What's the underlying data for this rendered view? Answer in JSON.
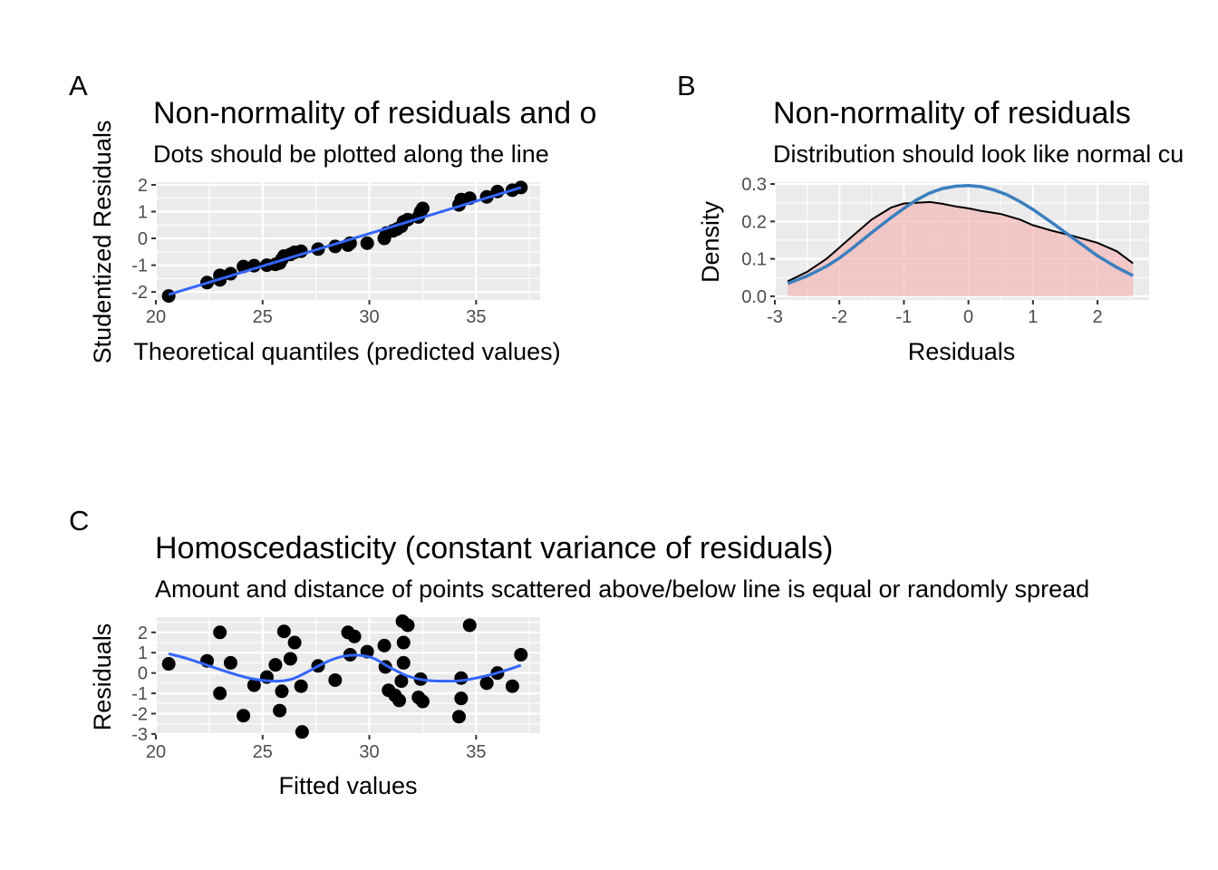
{
  "panels": [
    {
      "tag": "A",
      "title": "Non-normality of residuals and o",
      "subtitle": "Dots should be plotted along the line"
    },
    {
      "tag": "B",
      "title": "Non-normality of residuals",
      "subtitle": "Distribution should look like normal cu"
    },
    {
      "tag": "C",
      "title": "Homoscedasticity (constant variance of residuals)",
      "subtitle": "Amount and distance of points scattered above/below line is equal or randomly spread"
    }
  ],
  "colors": {
    "panel_background": "#ebebeb",
    "grid": "#ffffff",
    "points": "#000000",
    "fit_line": "#3366ff",
    "normal_curve": "#3b7fbf",
    "density_fill": "#f4b6b6",
    "density_line": "#000000"
  },
  "chart_data": [
    {
      "type": "scatter",
      "title": "Non-normality of residuals and o",
      "subtitle": "Dots should be plotted along the line",
      "xlabel": "Theoretical quantiles (predicted values)",
      "ylabel": "Studentized Residuals",
      "xlim": [
        20,
        38
      ],
      "ylim": [
        -2.3,
        2.1
      ],
      "xticks": [
        20,
        25,
        30,
        35
      ],
      "yticks": [
        -2,
        -1,
        0,
        1,
        2
      ],
      "grid": true,
      "points": [
        {
          "x": 20.6,
          "y": -2.15
        },
        {
          "x": 22.4,
          "y": -1.65
        },
        {
          "x": 23.0,
          "y": -1.55
        },
        {
          "x": 23.0,
          "y": -1.38
        },
        {
          "x": 23.5,
          "y": -1.32
        },
        {
          "x": 24.1,
          "y": -1.05
        },
        {
          "x": 24.6,
          "y": -1.02
        },
        {
          "x": 25.2,
          "y": -1.0
        },
        {
          "x": 25.6,
          "y": -0.97
        },
        {
          "x": 25.8,
          "y": -0.92
        },
        {
          "x": 25.9,
          "y": -0.78
        },
        {
          "x": 26.0,
          "y": -0.66
        },
        {
          "x": 26.3,
          "y": -0.6
        },
        {
          "x": 26.5,
          "y": -0.52
        },
        {
          "x": 26.8,
          "y": -0.48
        },
        {
          "x": 27.6,
          "y": -0.4
        },
        {
          "x": 28.4,
          "y": -0.3
        },
        {
          "x": 29.0,
          "y": -0.25
        },
        {
          "x": 29.1,
          "y": -0.18
        },
        {
          "x": 29.9,
          "y": -0.18
        },
        {
          "x": 30.7,
          "y": 0.0
        },
        {
          "x": 30.8,
          "y": 0.2
        },
        {
          "x": 31.1,
          "y": 0.28
        },
        {
          "x": 31.3,
          "y": 0.35
        },
        {
          "x": 31.5,
          "y": 0.45
        },
        {
          "x": 31.6,
          "y": 0.62
        },
        {
          "x": 31.8,
          "y": 0.7
        },
        {
          "x": 32.3,
          "y": 0.8
        },
        {
          "x": 32.4,
          "y": 1.0
        },
        {
          "x": 32.5,
          "y": 1.12
        },
        {
          "x": 34.2,
          "y": 1.25
        },
        {
          "x": 34.3,
          "y": 1.45
        },
        {
          "x": 34.7,
          "y": 1.5
        },
        {
          "x": 35.5,
          "y": 1.55
        },
        {
          "x": 36.0,
          "y": 1.75
        },
        {
          "x": 36.7,
          "y": 1.8
        },
        {
          "x": 37.1,
          "y": 1.9
        }
      ],
      "line": {
        "x": [
          20.6,
          37.1
        ],
        "y": [
          -2.1,
          1.9
        ]
      }
    },
    {
      "type": "area",
      "title": "Non-normality of residuals",
      "subtitle": "Distribution should look like normal cu",
      "xlabel": "Residuals",
      "ylabel": "Density",
      "xlim": [
        -3.0,
        2.8
      ],
      "ylim": [
        -0.01,
        0.305
      ],
      "xticks": [
        -3,
        -2,
        -1,
        0,
        1,
        2
      ],
      "yticks": [
        0.0,
        0.1,
        0.2,
        0.3
      ],
      "ytick_labels": [
        "0.0",
        "0.1",
        "0.2",
        "0.3"
      ],
      "grid": true,
      "series": [
        {
          "type": "area",
          "x": [
            -2.8,
            -2.5,
            -2.2,
            -2.0,
            -1.8,
            -1.5,
            -1.2,
            -1.0,
            -0.8,
            -0.6,
            -0.4,
            -0.2,
            0.0,
            0.2,
            0.5,
            0.8,
            1.0,
            1.3,
            1.6,
            2.0,
            2.3,
            2.55
          ],
          "y": [
            0.04,
            0.065,
            0.1,
            0.13,
            0.16,
            0.205,
            0.237,
            0.248,
            0.25,
            0.252,
            0.247,
            0.24,
            0.235,
            0.228,
            0.22,
            0.205,
            0.19,
            0.175,
            0.162,
            0.143,
            0.12,
            0.088
          ]
        },
        {
          "type": "line",
          "x": [
            -2.8,
            -2.5,
            -2.2,
            -2.0,
            -1.8,
            -1.5,
            -1.2,
            -1.0,
            -0.8,
            -0.6,
            -0.4,
            -0.2,
            0.0,
            0.2,
            0.4,
            0.6,
            0.8,
            1.0,
            1.3,
            1.6,
            2.0,
            2.3,
            2.55
          ],
          "y": [
            0.034,
            0.054,
            0.08,
            0.102,
            0.128,
            0.17,
            0.21,
            0.235,
            0.258,
            0.276,
            0.288,
            0.294,
            0.296,
            0.293,
            0.284,
            0.271,
            0.253,
            0.232,
            0.196,
            0.158,
            0.108,
            0.077,
            0.055
          ]
        }
      ]
    },
    {
      "type": "scatter",
      "title": "Homoscedasticity (constant variance of residuals)",
      "subtitle": "Amount and distance of points scattered above/below line is equal or randomly spread",
      "xlabel": "Fitted values",
      "ylabel": "Residuals",
      "xlim": [
        20,
        38
      ],
      "ylim": [
        -3.05,
        2.75
      ],
      "xticks": [
        20,
        25,
        30,
        35
      ],
      "yticks": [
        -3,
        -2,
        -1,
        0,
        1,
        2
      ],
      "grid": true,
      "points": [
        {
          "x": 20.6,
          "y": 0.45
        },
        {
          "x": 22.4,
          "y": 0.6
        },
        {
          "x": 23.0,
          "y": 2.0
        },
        {
          "x": 23.0,
          "y": -1.0
        },
        {
          "x": 23.5,
          "y": 0.5
        },
        {
          "x": 24.1,
          "y": -2.1
        },
        {
          "x": 24.6,
          "y": -0.6
        },
        {
          "x": 25.2,
          "y": -0.2
        },
        {
          "x": 25.6,
          "y": 0.4
        },
        {
          "x": 25.8,
          "y": -1.85
        },
        {
          "x": 25.9,
          "y": -0.9
        },
        {
          "x": 26.0,
          "y": 2.05
        },
        {
          "x": 26.3,
          "y": 0.7
        },
        {
          "x": 26.5,
          "y": 1.5
        },
        {
          "x": 26.8,
          "y": -0.65
        },
        {
          "x": 26.85,
          "y": -2.9
        },
        {
          "x": 27.6,
          "y": 0.35
        },
        {
          "x": 28.4,
          "y": -0.35
        },
        {
          "x": 29.0,
          "y": 2.0
        },
        {
          "x": 29.1,
          "y": 0.9
        },
        {
          "x": 29.3,
          "y": 1.8
        },
        {
          "x": 29.9,
          "y": 1.05
        },
        {
          "x": 30.7,
          "y": 1.35
        },
        {
          "x": 30.75,
          "y": 0.3
        },
        {
          "x": 30.9,
          "y": -0.85
        },
        {
          "x": 31.2,
          "y": -1.1
        },
        {
          "x": 31.4,
          "y": -1.35
        },
        {
          "x": 31.5,
          "y": -0.4
        },
        {
          "x": 31.55,
          "y": 2.55
        },
        {
          "x": 31.6,
          "y": 1.5
        },
        {
          "x": 31.6,
          "y": 0.5
        },
        {
          "x": 31.8,
          "y": 2.35
        },
        {
          "x": 32.3,
          "y": -1.2
        },
        {
          "x": 32.4,
          "y": -0.3
        },
        {
          "x": 32.5,
          "y": -1.4
        },
        {
          "x": 34.2,
          "y": -2.15
        },
        {
          "x": 34.3,
          "y": -1.25
        },
        {
          "x": 34.3,
          "y": -0.25
        },
        {
          "x": 34.7,
          "y": 2.35
        },
        {
          "x": 35.5,
          "y": -0.5
        },
        {
          "x": 36.0,
          "y": 0.0
        },
        {
          "x": 36.7,
          "y": -0.65
        },
        {
          "x": 37.1,
          "y": 0.9
        }
      ],
      "line": {
        "x": [
          20.6,
          21.5,
          22.5,
          23.5,
          24.5,
          25.5,
          26.3,
          27.0,
          27.8,
          28.6,
          29.4,
          30.2,
          31.0,
          31.8,
          32.6,
          33.4,
          34.2,
          35.0,
          35.8,
          36.6,
          37.1
        ],
        "y": [
          0.95,
          0.7,
          0.35,
          0.0,
          -0.28,
          -0.4,
          -0.32,
          0.0,
          0.45,
          0.78,
          0.88,
          0.72,
          0.25,
          -0.15,
          -0.35,
          -0.4,
          -0.38,
          -0.25,
          -0.05,
          0.2,
          0.38
        ]
      }
    }
  ]
}
